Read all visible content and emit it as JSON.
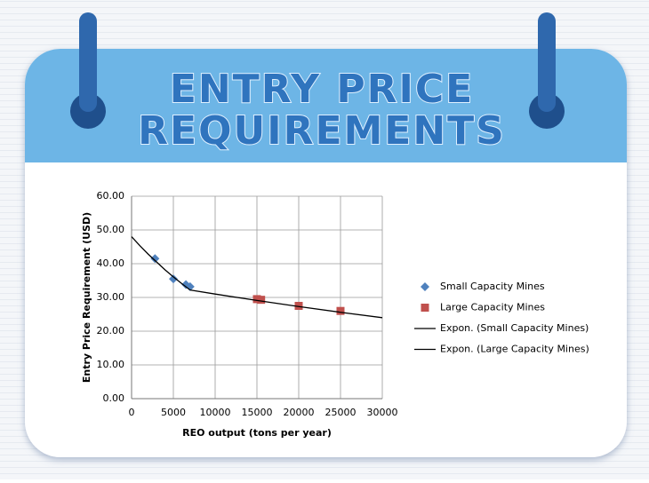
{
  "chart_data": {
    "type": "scatter",
    "title": [
      "ENTRY PRICE",
      "REQUIREMENTS"
    ],
    "xlabel": "REO output (tons per year)",
    "ylabel": "Entry Price Requirement (USD)",
    "xlim": [
      0,
      30000
    ],
    "xticks": [
      0,
      5000,
      10000,
      15000,
      20000,
      25000,
      30000
    ],
    "ylim": [
      0,
      60
    ],
    "yticks": [
      {
        "value": 0,
        "label": "0.00"
      },
      {
        "value": 10,
        "label": "10.00"
      },
      {
        "value": 20,
        "label": "20.00"
      },
      {
        "value": 30,
        "label": "30.00"
      },
      {
        "value": 40,
        "label": "40.00"
      },
      {
        "value": 50,
        "label": "50.00"
      },
      {
        "value": 60,
        "label": "60.00"
      }
    ],
    "grid": true,
    "legend": "right",
    "series": [
      {
        "name": "Small Capacity Mines",
        "color": "#4f81bd",
        "marker": "diamond",
        "x": [
          2800,
          5000,
          6500,
          7000
        ],
        "values": [
          41.5,
          35.5,
          33.8,
          33.2
        ]
      },
      {
        "name": "Large Capacity Mines",
        "color": "#c0504d",
        "marker": "square",
        "x": [
          15000,
          15500,
          20000,
          25000
        ],
        "values": [
          29.5,
          29.3,
          27.5,
          26.0
        ]
      },
      {
        "name": "Expon. (Small Capacity Mines)",
        "color": "#000000",
        "marker": "line",
        "x": [
          0,
          1000,
          2000,
          3000,
          4000,
          5000,
          6000,
          7000
        ],
        "values": [
          48,
          45.3,
          42.8,
          40.5,
          38.2,
          36.1,
          34.1,
          32.2
        ]
      },
      {
        "name": "Expon. (Large Capacity Mines)",
        "color": "#000000",
        "marker": "line",
        "x": [
          7000,
          10000,
          15000,
          20000,
          25000,
          30000
        ],
        "values": [
          32.2,
          31.0,
          29.1,
          27.3,
          25.6,
          24.0
        ]
      }
    ]
  }
}
